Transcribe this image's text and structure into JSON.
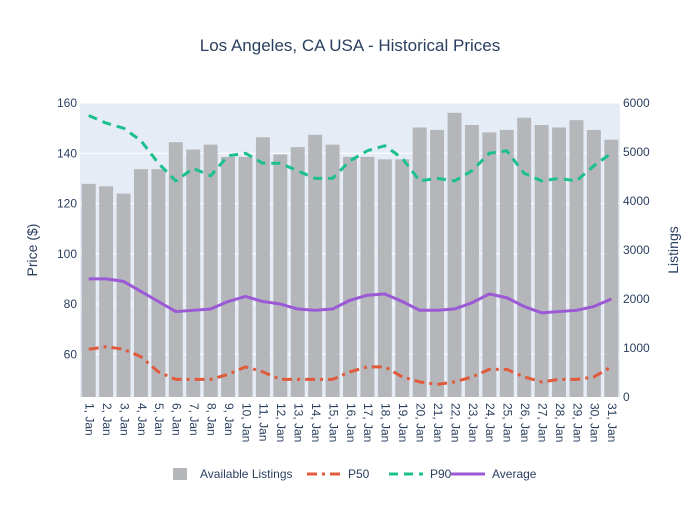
{
  "chart_data": {
    "type": "bar+line",
    "title": "Los Angeles, CA USA - Historical Prices",
    "ylabel": "Price ($)",
    "y2label": "Listings",
    "ylim": [
      43,
      160
    ],
    "y2lim": [
      0,
      6000
    ],
    "yticks": [
      60,
      80,
      100,
      120,
      140,
      160
    ],
    "y2ticks": [
      0,
      1000,
      2000,
      3000,
      4000,
      5000,
      6000
    ],
    "categories": [
      "1, Jan",
      "2, Jan",
      "3, Jan",
      "4, Jan",
      "5, Jan",
      "6, Jan",
      "7, Jan",
      "8, Jan",
      "9, Jan",
      "10, Jan",
      "11, Jan",
      "12, Jan",
      "13, Jan",
      "14, Jan",
      "15, Jan",
      "16, Jan",
      "17, Jan",
      "18, Jan",
      "19, Jan",
      "20, Jan",
      "21, Jan",
      "22, Jan",
      "23, Jan",
      "24, Jan",
      "25, Jan",
      "26, Jan",
      "27, Jan",
      "28, Jan",
      "29, Jan",
      "30, Jan",
      "31, Jan"
    ],
    "bars": {
      "name": "Available Listings",
      "axis": "y2",
      "color": "#b4b6ba",
      "values": [
        4350,
        4300,
        4150,
        4650,
        4650,
        5200,
        5050,
        5150,
        4900,
        4900,
        5300,
        4950,
        5100,
        5350,
        5150,
        4900,
        4900,
        4850,
        4850,
        5500,
        5450,
        5800,
        5550,
        5400,
        5450,
        5700,
        5550,
        5500,
        5650,
        5450,
        5250
      ]
    },
    "series": [
      {
        "name": "P50",
        "axis": "y",
        "color": "#e05a3c",
        "dash": "dashdot",
        "values": [
          62,
          63,
          62,
          59,
          53,
          50,
          50,
          50,
          52,
          55,
          53,
          50,
          50,
          50,
          50,
          53,
          55,
          55,
          51,
          49,
          48,
          49,
          51,
          54,
          54,
          51,
          49,
          50,
          50,
          51,
          55
        ]
      },
      {
        "name": "P90",
        "axis": "y",
        "color": "#1dc08c",
        "dash": "dash",
        "values": [
          155,
          152,
          150,
          145,
          136,
          129,
          134,
          131,
          139,
          140,
          136,
          136,
          133,
          130,
          130,
          137,
          141,
          143,
          138,
          129,
          130,
          129,
          133,
          140,
          141,
          132,
          129,
          130,
          129,
          135,
          140
        ]
      },
      {
        "name": "Average",
        "axis": "y",
        "color": "#9b59d6",
        "dash": "solid",
        "values": [
          90,
          90,
          89,
          85,
          81,
          77,
          77.5,
          78,
          81,
          83,
          81,
          80,
          78,
          77.5,
          78,
          81.5,
          83.5,
          84,
          81,
          77.5,
          77.5,
          78,
          80.5,
          84,
          82.5,
          79,
          76.5,
          77,
          77.5,
          79,
          82
        ]
      }
    ],
    "legend": {
      "position": "bottom-center",
      "labels": [
        "Available Listings",
        "P50",
        "P90",
        "Average"
      ]
    }
  }
}
